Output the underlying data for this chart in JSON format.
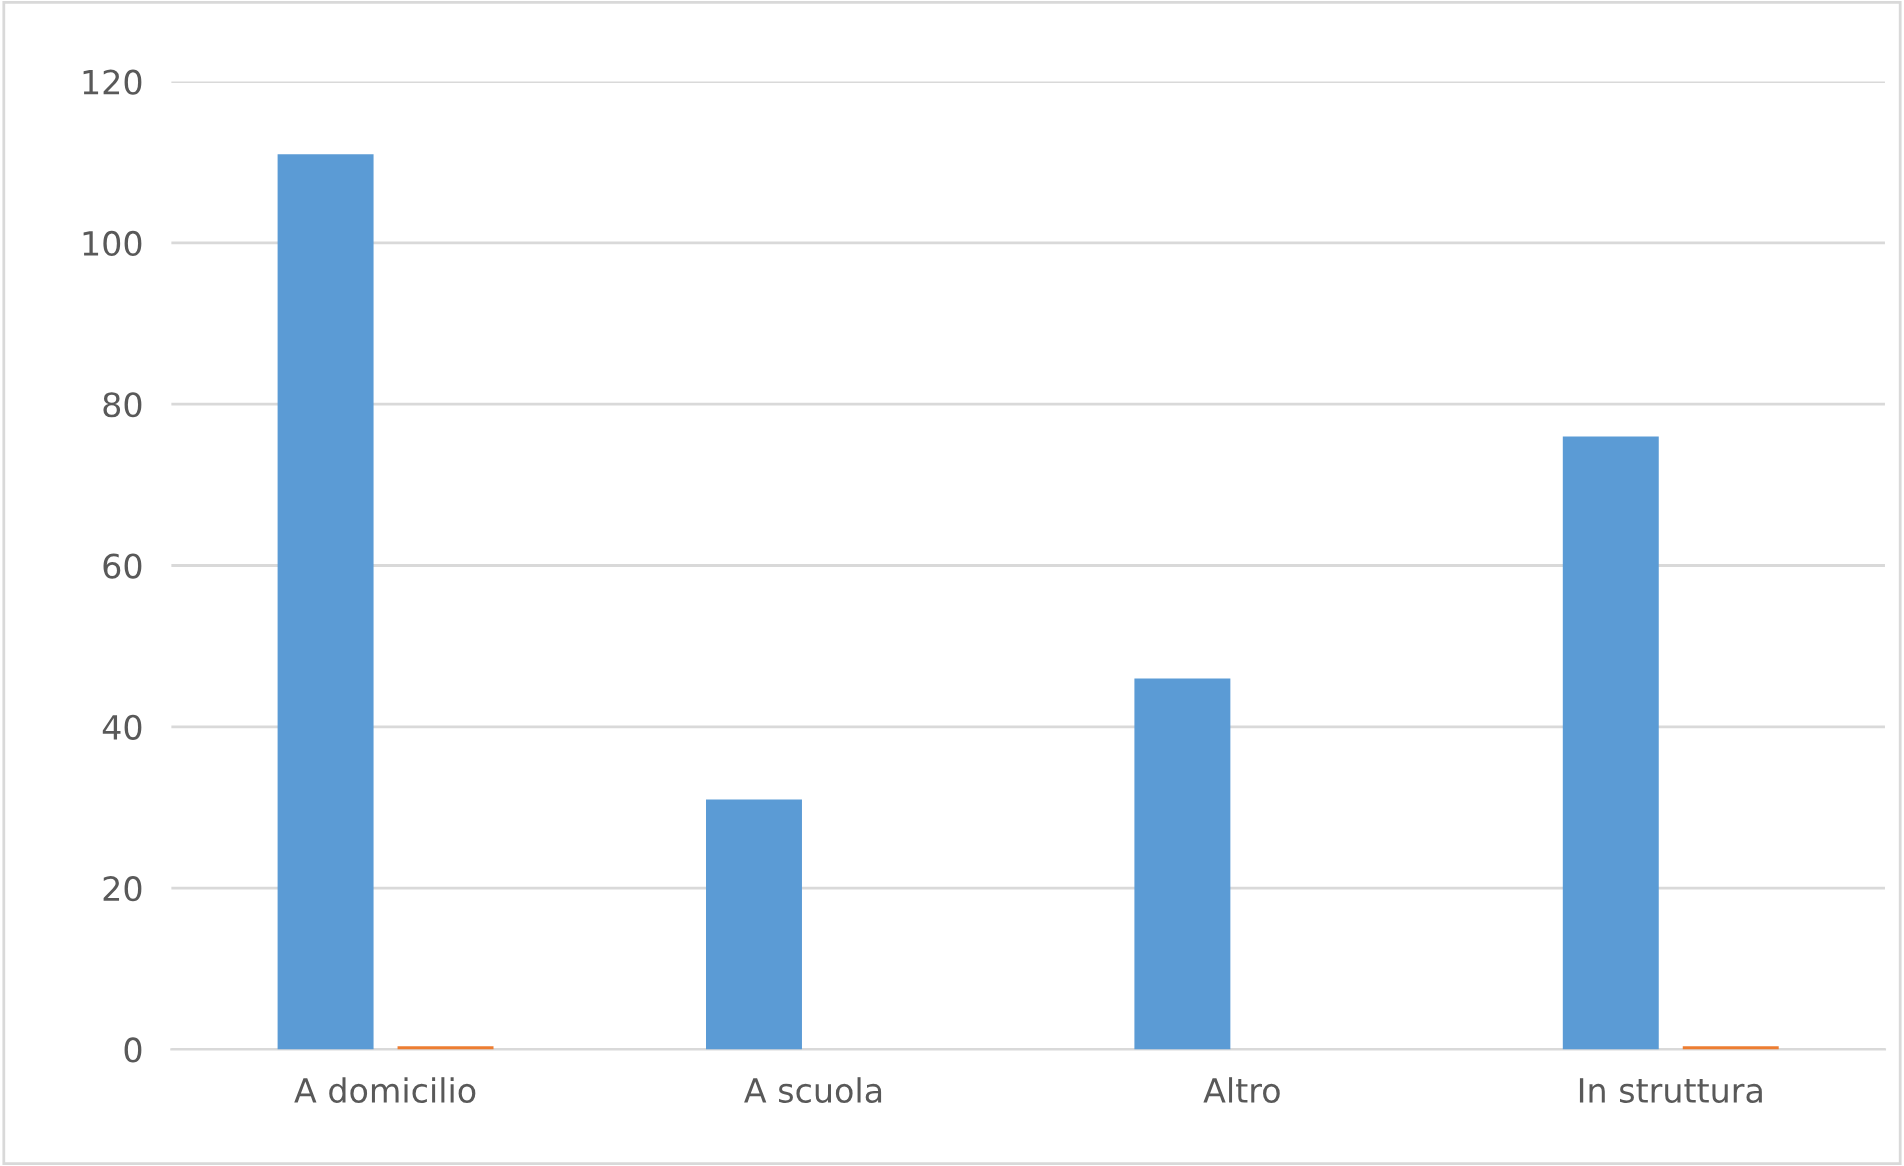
{
  "chart_data": {
    "type": "bar",
    "categories": [
      "A domicilio",
      "A scuola",
      "Altro",
      "In struttura"
    ],
    "series": [
      {
        "color": "#5b9bd5",
        "values": [
          111,
          31,
          46,
          76
        ]
      },
      {
        "color": "#ed7d31",
        "values": [
          0.4,
          0,
          0,
          0.4
        ]
      }
    ],
    "ylim": [
      0,
      120
    ],
    "yticks": [
      0,
      20,
      40,
      60,
      80,
      100,
      120
    ],
    "grid": "y",
    "legend": false
  }
}
